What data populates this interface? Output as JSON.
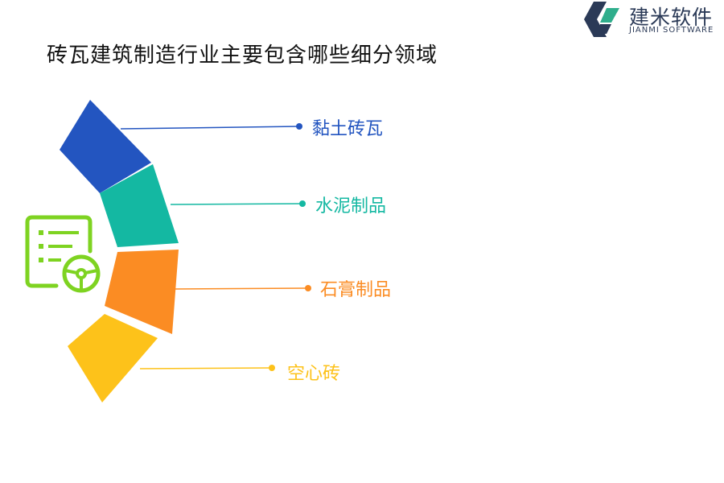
{
  "title": "砖瓦建筑制造行业主要包含哪些细分领域",
  "logo": {
    "name_cn": "建米软件",
    "name_en": "JIANMI SOFTWARE",
    "colors": {
      "dark": "#2b3a57",
      "accent": "#2fae8c"
    }
  },
  "center_icon": {
    "name": "document-steering-wheel-icon",
    "color": "#7ed321"
  },
  "items": [
    {
      "label": "黏土砖瓦",
      "color": "#2355c0"
    },
    {
      "label": "水泥制品",
      "color": "#14b8a2"
    },
    {
      "label": "石膏制品",
      "color": "#fb8c23"
    },
    {
      "label": "空心砖",
      "color": "#fdc21a"
    }
  ]
}
